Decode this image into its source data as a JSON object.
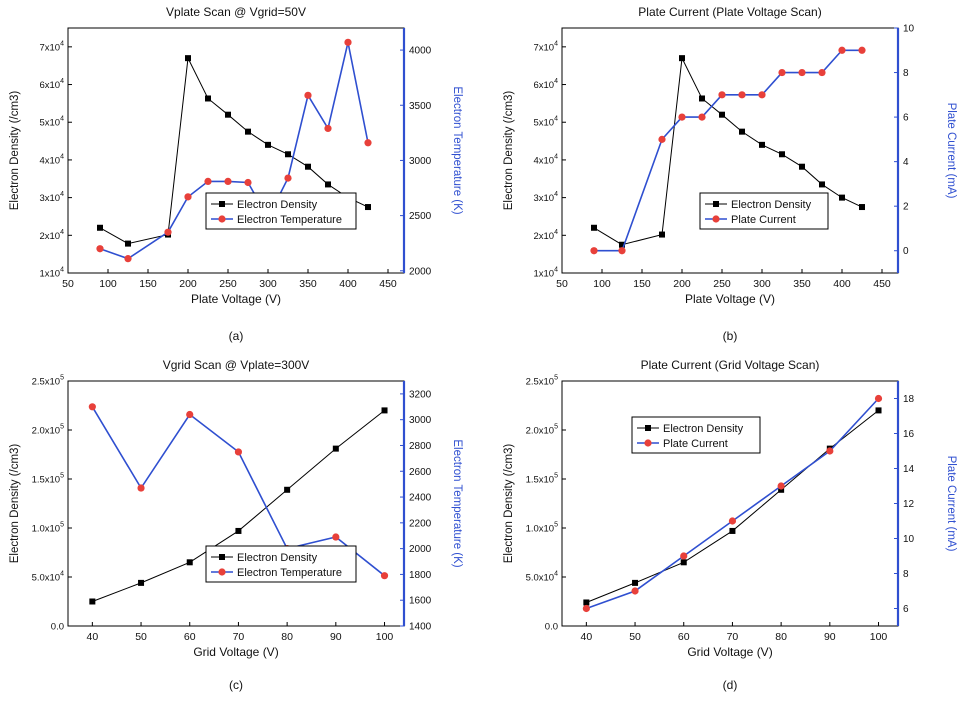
{
  "colors": {
    "series1": "#000000",
    "series2_line": "#2f4fd0",
    "series2_marker": "#e8403a",
    "right_axis": "#2f4fd0"
  },
  "panels": [
    {
      "caption": "(a)"
    },
    {
      "caption": "(b)"
    },
    {
      "caption": "(c)"
    },
    {
      "caption": "(d)"
    }
  ],
  "chart_data": [
    {
      "type": "line",
      "title": "Vplate Scan @ Vgrid=50V",
      "xlabel": "Plate Voltage (V)",
      "ylabel": "Electron Density (/cm3)",
      "y2label": "Electron Temperature (K)",
      "xlim": [
        50,
        470
      ],
      "ylim": [
        10000,
        75000
      ],
      "y2lim": [
        1980,
        4200
      ],
      "xticks": [
        50,
        100,
        150,
        200,
        250,
        300,
        350,
        400,
        450
      ],
      "yticks": [
        {
          "v": 10000,
          "m": "1x10",
          "e": "4"
        },
        {
          "v": 20000,
          "m": "2x10",
          "e": "4"
        },
        {
          "v": 30000,
          "m": "3x10",
          "e": "4"
        },
        {
          "v": 40000,
          "m": "4x10",
          "e": "4"
        },
        {
          "v": 50000,
          "m": "5x10",
          "e": "4"
        },
        {
          "v": 60000,
          "m": "6x10",
          "e": "4"
        },
        {
          "v": 70000,
          "m": "7x10",
          "e": "4"
        }
      ],
      "y2ticks": [
        2000,
        2500,
        3000,
        3500,
        4000
      ],
      "legend_position": "bottom-right",
      "series": [
        {
          "name": "Electron Density",
          "axis": "left",
          "x": [
            90,
            125,
            175,
            200,
            225,
            250,
            275,
            300,
            325,
            350,
            375,
            400,
            425
          ],
          "y": [
            22000,
            17800,
            20200,
            67000,
            56300,
            52000,
            47500,
            44000,
            41500,
            38200,
            33500,
            30000,
            27500
          ]
        },
        {
          "name": "Electron Temperature",
          "axis": "right",
          "x": [
            90,
            125,
            175,
            200,
            225,
            250,
            275,
            300,
            325,
            350,
            375,
            400,
            425
          ],
          "y": [
            2200,
            2110,
            2350,
            2670,
            2810,
            2810,
            2800,
            2480,
            2840,
            3590,
            3290,
            4070,
            3160
          ]
        }
      ]
    },
    {
      "type": "line",
      "title": "Plate Current (Plate Voltage Scan)",
      "xlabel": "Plate Voltage (V)",
      "ylabel": "Electron Density (/cm3)",
      "y2label": "Plate Current (mA)",
      "xlim": [
        50,
        470
      ],
      "ylim": [
        10000,
        75000
      ],
      "y2lim": [
        -1,
        10
      ],
      "xticks": [
        50,
        100,
        150,
        200,
        250,
        300,
        350,
        400,
        450
      ],
      "yticks": [
        {
          "v": 10000,
          "m": "1x10",
          "e": "4"
        },
        {
          "v": 20000,
          "m": "2x10",
          "e": "4"
        },
        {
          "v": 30000,
          "m": "3x10",
          "e": "4"
        },
        {
          "v": 40000,
          "m": "4x10",
          "e": "4"
        },
        {
          "v": 50000,
          "m": "5x10",
          "e": "4"
        },
        {
          "v": 60000,
          "m": "6x10",
          "e": "4"
        },
        {
          "v": 70000,
          "m": "7x10",
          "e": "4"
        }
      ],
      "y2ticks": [
        0,
        2,
        4,
        6,
        8,
        10
      ],
      "legend_position": "bottom-right",
      "series": [
        {
          "name": "Electron Density",
          "axis": "left",
          "x": [
            90,
            125,
            175,
            200,
            225,
            250,
            275,
            300,
            325,
            350,
            375,
            400,
            425
          ],
          "y": [
            22000,
            17500,
            20200,
            67000,
            56300,
            52000,
            47500,
            44000,
            41500,
            38200,
            33500,
            30000,
            27500
          ]
        },
        {
          "name": "Plate Current",
          "axis": "right",
          "x": [
            90,
            125,
            175,
            200,
            225,
            250,
            275,
            300,
            325,
            350,
            375,
            400,
            425
          ],
          "y": [
            0,
            0,
            5,
            6,
            6,
            7,
            7,
            7,
            8,
            8,
            8,
            9,
            9
          ]
        }
      ]
    },
    {
      "type": "line",
      "title": "Vgrid Scan @ Vplate=300V",
      "xlabel": "Grid Voltage (V)",
      "ylabel": "Electron Density (/cm3)",
      "y2label": "Electron Temperature (K)",
      "xlim": [
        35,
        104
      ],
      "ylim": [
        0,
        250000
      ],
      "y2lim": [
        1400,
        3300
      ],
      "xticks": [
        40,
        50,
        60,
        70,
        80,
        90,
        100
      ],
      "yticks": [
        {
          "v": 0,
          "m": "0.0",
          "e": ""
        },
        {
          "v": 50000,
          "m": "5.0x10",
          "e": "4"
        },
        {
          "v": 100000,
          "m": "1.0x10",
          "e": "5"
        },
        {
          "v": 150000,
          "m": "1.5x10",
          "e": "5"
        },
        {
          "v": 200000,
          "m": "2.0x10",
          "e": "5"
        },
        {
          "v": 250000,
          "m": "2.5x10",
          "e": "5"
        }
      ],
      "y2ticks": [
        1400,
        1600,
        1800,
        2000,
        2200,
        2400,
        2600,
        2800,
        3000,
        3200
      ],
      "legend_position": "bottom-right",
      "series": [
        {
          "name": "Electron Density",
          "axis": "left",
          "x": [
            40,
            50,
            60,
            70,
            80,
            90,
            100
          ],
          "y": [
            25000,
            44000,
            65000,
            97000,
            139000,
            181000,
            220000
          ]
        },
        {
          "name": "Electron Temperature",
          "axis": "right",
          "x": [
            40,
            50,
            60,
            70,
            80,
            90,
            100
          ],
          "y": [
            3100,
            2470,
            3040,
            2750,
            2000,
            2090,
            1790
          ]
        }
      ]
    },
    {
      "type": "line",
      "title": "Plate Current (Grid Voltage Scan)",
      "xlabel": "Grid Voltage (V)",
      "ylabel": "Electron Density (/cm3)",
      "y2label": "Plate Current (mA)",
      "xlim": [
        35,
        104
      ],
      "ylim": [
        0,
        250000
      ],
      "y2lim": [
        5,
        19
      ],
      "xticks": [
        40,
        50,
        60,
        70,
        80,
        90,
        100
      ],
      "yticks": [
        {
          "v": 0,
          "m": "0.0",
          "e": ""
        },
        {
          "v": 50000,
          "m": "5.0x10",
          "e": "4"
        },
        {
          "v": 100000,
          "m": "1.0x10",
          "e": "5"
        },
        {
          "v": 150000,
          "m": "1.5x10",
          "e": "5"
        },
        {
          "v": 200000,
          "m": "2.0x10",
          "e": "5"
        },
        {
          "v": 250000,
          "m": "2.5x10",
          "e": "5"
        }
      ],
      "y2ticks": [
        6,
        8,
        10,
        12,
        14,
        16,
        18
      ],
      "legend_position": "top-left",
      "series": [
        {
          "name": "Electron Density",
          "axis": "left",
          "x": [
            40,
            50,
            60,
            70,
            80,
            90,
            100
          ],
          "y": [
            24000,
            44000,
            65000,
            97000,
            139000,
            181000,
            220000
          ]
        },
        {
          "name": "Plate Current",
          "axis": "right",
          "x": [
            40,
            50,
            60,
            70,
            80,
            90,
            100
          ],
          "y": [
            6,
            7,
            9,
            11,
            13,
            15,
            18
          ]
        }
      ]
    }
  ]
}
